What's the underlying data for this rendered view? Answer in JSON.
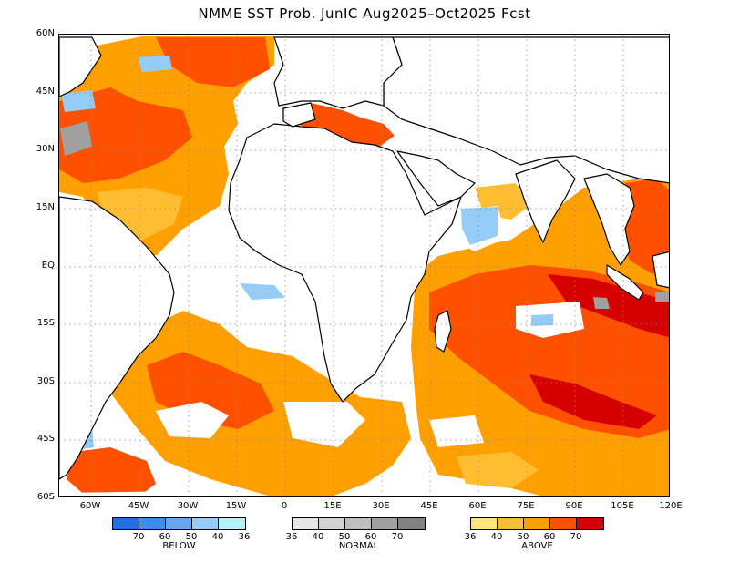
{
  "title": "NMME SST Prob. JunIC   Aug2025–Oct2025 Fcst",
  "lat_labels": [
    "60N",
    "45N",
    "30N",
    "15N",
    "EQ",
    "15S",
    "30S",
    "45S",
    "60S"
  ],
  "lon_labels": [
    "60W",
    "45W",
    "30W",
    "15W",
    "0",
    "15E",
    "30E",
    "45E",
    "60E",
    "75E",
    "90E",
    "105E",
    "120E"
  ],
  "legends": [
    {
      "name": "BELOW",
      "ticks": [
        "70",
        "60",
        "50",
        "40",
        "36"
      ],
      "colors": [
        "#1e6ee6",
        "#3c8cf0",
        "#64a6f2",
        "#96ccf8",
        "#b4f0f8"
      ]
    },
    {
      "name": "NORMAL",
      "ticks": [
        "36",
        "40",
        "50",
        "60",
        "70"
      ],
      "colors": [
        "#e6e6e6",
        "#d2d2d2",
        "#bebebe",
        "#a0a0a0",
        "#828282"
      ]
    },
    {
      "name": "ABOVE",
      "ticks": [
        "36",
        "40",
        "50",
        "60",
        "70"
      ],
      "colors": [
        "#ffe678",
        "#ffbe32",
        "#ffa000",
        "#ff5000",
        "#d70000"
      ]
    }
  ],
  "colors": {
    "above_light": "#ffbe32",
    "above_mid": "#ffa000",
    "above_strong": "#ff5000",
    "above_max": "#d70000",
    "below_light": "#96ccf8",
    "below_mid": "#64a6f2",
    "normal": "#a0a0a0"
  }
}
